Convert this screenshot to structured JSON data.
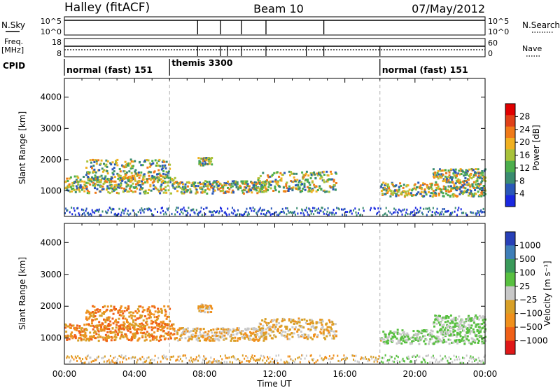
{
  "header": {
    "station": "Halley (fitACF)",
    "beam": "Beam 10",
    "date": "07/May/2012"
  },
  "panel_labels": {
    "nsky": "N.Sky",
    "freq": "Freq.",
    "freq_unit": "[MHz]",
    "cpid": "CPID",
    "nsearch": "N.Search",
    "nave": "Nave"
  },
  "mini_axes": {
    "nsky_ticks": [
      "10^5",
      "10^0"
    ],
    "nsearch_ticks": [
      "10^5",
      "10^0"
    ],
    "freq_ticks": [
      "18",
      "8"
    ],
    "nave_ticks": [
      "60",
      "0"
    ]
  },
  "cpid_segments": [
    {
      "label": "normal (fast) 151",
      "start_h": 0,
      "end_h": 6
    },
    {
      "label": "themis 3300",
      "start_h": 6,
      "end_h": 18
    },
    {
      "label": "normal (fast) 151",
      "start_h": 18,
      "end_h": 24
    }
  ],
  "colors": {
    "power": [
      "#1a28e0",
      "#2a58b8",
      "#3a8c70",
      "#4cae4c",
      "#a8c23a",
      "#f0b020",
      "#f07a18",
      "#e04018",
      "#e00000"
    ],
    "velocity": [
      "#2840b8",
      "#3e7eb8",
      "#3a9a5a",
      "#58c040",
      "#c8c8c8",
      "#d8a028",
      "#f0901c",
      "#f06018",
      "#e01818"
    ],
    "dashed_line": "#b0b0b0"
  },
  "chart_data": [
    {
      "type": "heatmap",
      "name": "power",
      "ylabel": "Slant Range [km]",
      "xlim": [
        0,
        24
      ],
      "ylim": [
        180,
        4600
      ],
      "yticks": [
        "1000",
        "2000",
        "3000",
        "4000"
      ],
      "colorbar_label": "Power [dB]",
      "colorbar_ticks": [
        "28",
        "24",
        "20",
        "16",
        "12",
        "8",
        "4"
      ],
      "colorbar_range": [
        0,
        32
      ],
      "mode_change_hours": [
        6,
        18
      ],
      "echo_regions": [
        {
          "t0": 0.0,
          "t1": 6.3,
          "r0": 900,
          "r1": 1450,
          "note": "main band"
        },
        {
          "t0": 1.2,
          "t1": 6.0,
          "r0": 1250,
          "r1": 2000,
          "note": "rising arc"
        },
        {
          "t0": 6.3,
          "t1": 11.5,
          "r0": 900,
          "r1": 1300,
          "note": "themis band"
        },
        {
          "t0": 7.6,
          "t1": 8.4,
          "r0": 1800,
          "r1": 2050,
          "note": "blob"
        },
        {
          "t0": 11.0,
          "t1": 15.5,
          "r0": 950,
          "r1": 1600,
          "note": "scattered"
        },
        {
          "t0": 18.0,
          "t1": 24.0,
          "r0": 800,
          "r1": 1250,
          "note": "evening band"
        },
        {
          "t0": 21.0,
          "t1": 24.0,
          "r0": 1250,
          "r1": 1700,
          "note": "evening patches"
        },
        {
          "t0": 0.0,
          "t1": 24.0,
          "r0": 200,
          "r1": 450,
          "note": "near-range clutter"
        }
      ]
    },
    {
      "type": "heatmap",
      "name": "velocity",
      "ylabel": "Slant Range [km]",
      "xlabel": "Time UT",
      "xlim": [
        0,
        24
      ],
      "ylim": [
        180,
        4600
      ],
      "xticks": [
        "00:00",
        "04:00",
        "08:00",
        "12:00",
        "16:00",
        "20:00",
        "00:00"
      ],
      "yticks": [
        "1000",
        "2000",
        "3000",
        "4000"
      ],
      "colorbar_label": "Velocity [m s⁻¹]",
      "colorbar_ticks": [
        "1000",
        "500",
        "100",
        "25",
        "−25",
        "−100",
        "−500",
        "−1000"
      ],
      "mode_change_hours": [
        6,
        18
      ],
      "echo_regions": [
        {
          "t0": 0.0,
          "t1": 6.3,
          "r0": 900,
          "r1": 1450,
          "note": "main band"
        },
        {
          "t0": 1.2,
          "t1": 6.0,
          "r0": 1250,
          "r1": 2000,
          "note": "rising arc"
        },
        {
          "t0": 6.3,
          "t1": 11.5,
          "r0": 900,
          "r1": 1300,
          "note": "themis band"
        },
        {
          "t0": 7.6,
          "t1": 8.4,
          "r0": 1800,
          "r1": 2050,
          "note": "blob"
        },
        {
          "t0": 11.0,
          "t1": 15.5,
          "r0": 950,
          "r1": 1600,
          "note": "scattered"
        },
        {
          "t0": 18.0,
          "t1": 24.0,
          "r0": 800,
          "r1": 1250,
          "note": "evening band"
        },
        {
          "t0": 21.0,
          "t1": 24.0,
          "r0": 1250,
          "r1": 1700,
          "note": "evening patches"
        },
        {
          "t0": 0.0,
          "t1": 24.0,
          "r0": 200,
          "r1": 450,
          "note": "near-range clutter"
        }
      ]
    }
  ]
}
